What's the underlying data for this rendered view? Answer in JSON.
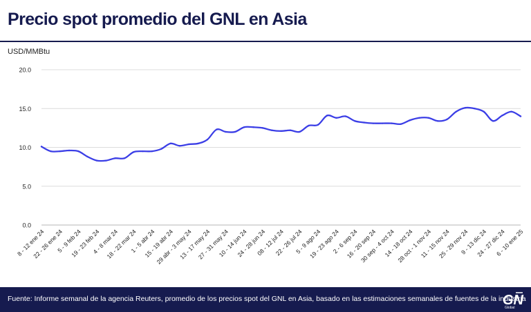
{
  "title": "Precio spot promedio del GNL en Asia",
  "footer": {
    "source": "Fuente: Informe semanal de la agencia Reuters, promedio de los precios spot del GNL en Asia, basado en las estimaciones semanales de fuentes de la industria",
    "logo_text": "GNL Global"
  },
  "colors": {
    "primary": "#161b4f",
    "line": "#3b3ee6",
    "grid": "#dcdcdc"
  },
  "chart_data": {
    "type": "line",
    "title": "Precio spot promedio del GNL en Asia",
    "ylabel": "USD/MMBtu",
    "xlabel": "",
    "ylim": [
      0,
      20
    ],
    "yticks": [
      "0.0",
      "5.0",
      "10.0",
      "15.0",
      "20.0"
    ],
    "grid": true,
    "legend": "none",
    "categories": [
      "8 - 12 ene 24",
      "22 - 26 ene 24",
      "5 - 9 feb 24",
      "19 - 23 feb 24",
      "4 - 8 mar 24",
      "18 - 22 mar 24",
      "1 - 5 abr 24",
      "15 - 19 abr 24",
      "29 abr - 3 may 24",
      "13 - 17 may 24",
      "27 - 31 may 24",
      "10 - 14 jun 24",
      "24 - 28 jun 24",
      "08 - 12 jul 24",
      "22 - 26 jul 24",
      "5 - 9 ago 24",
      "19 - 23 ago 24",
      "2 - 6 sep 24",
      "16 - 20 sep 24",
      "30 sep - 4 oct 24",
      "14 - 18 oct 24",
      "28 oct - 1 nov 24",
      "11 - 15 nov 24",
      "25 - 29 nov 24",
      "9 - 13 dic 24",
      "24 - 27 dic 24",
      "6 - 10 ene 25"
    ],
    "x": [
      "8 - 12 ene 24",
      "15 - 19 ene 24",
      "22 - 26 ene 24",
      "29 ene - 2 feb 24",
      "5 - 9 feb 24",
      "12 - 16 feb 24",
      "19 - 23 feb 24",
      "26 feb - 1 mar 24",
      "4 - 8 mar 24",
      "11 - 15 mar 24",
      "18 - 22 mar 24",
      "25 - 29 mar 24",
      "1 - 5 abr 24",
      "8 - 12 abr 24",
      "15 - 19 abr 24",
      "22 - 26 abr 24",
      "29 abr - 3 may 24",
      "6 - 10 may 24",
      "13 - 17 may 24",
      "20 - 24 may 24",
      "27 - 31 may 24",
      "3 - 7 jun 24",
      "10 - 14 jun 24",
      "17 - 21 jun 24",
      "24 - 28 jun 24",
      "1 - 5 jul 24",
      "08 - 12 jul 24",
      "15 - 19 jul 24",
      "22 - 26 jul 24",
      "29 jul - 2 ago 24",
      "5 - 9 ago 24",
      "12 - 16 ago 24",
      "19 - 23 ago 24",
      "26 - 30 ago 24",
      "2 - 6 sep 24",
      "9 - 13 sep 24",
      "16 - 20 sep 24",
      "23 - 27 sep 24",
      "30 sep - 4 oct 24",
      "7 - 11 oct 24",
      "14 - 18 oct 24",
      "21 - 25 oct 24",
      "28 oct - 1 nov 24",
      "4 - 8 nov 24",
      "11 - 15 nov 24",
      "18 - 22 nov 24",
      "25 - 29 nov 24",
      "2 - 6 dic 24",
      "9 - 13 dic 24",
      "16 - 20 dic 24",
      "24 - 27 dic 24",
      "30 dic - 3 ene 25",
      "6 - 10 ene 25"
    ],
    "series": [
      {
        "values": [
          10.1,
          9.5,
          9.5,
          9.6,
          9.5,
          8.8,
          8.3,
          8.3,
          8.6,
          8.6,
          9.4,
          9.5,
          9.5,
          9.8,
          10.5,
          10.2,
          10.4,
          10.5,
          11.0,
          12.3,
          12.0,
          12.0,
          12.6,
          12.6,
          12.5,
          12.2,
          12.1,
          12.2,
          12.0,
          12.8,
          12.9,
          14.1,
          13.8,
          14.0,
          13.4,
          13.2,
          13.1,
          13.1,
          13.1,
          13.0,
          13.5,
          13.8,
          13.8,
          13.4,
          13.6,
          14.6,
          15.1,
          15.0,
          14.6,
          13.4,
          14.1,
          14.6,
          14.0
        ]
      }
    ]
  }
}
